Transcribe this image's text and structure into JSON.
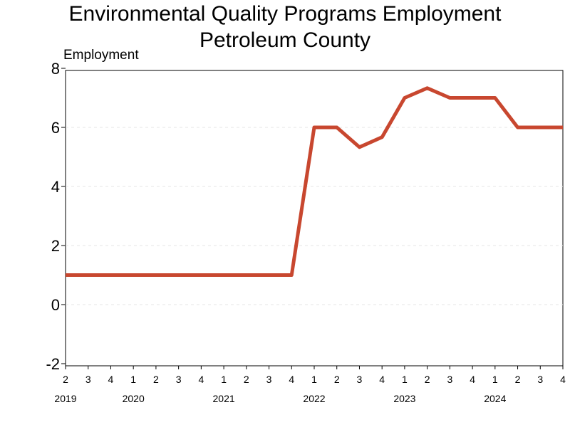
{
  "chart_data": {
    "type": "line",
    "title": "Environmental Quality Programs Employment",
    "subtitle": "Petroleum County",
    "ylabel": "Employment",
    "xlabel": "",
    "ylim": [
      -2,
      8
    ],
    "yticks": [
      "-2",
      "0",
      "2",
      "4",
      "6",
      "8"
    ],
    "grid": true,
    "line_color": "#c8472f",
    "x_quarters": [
      "2",
      "3",
      "4",
      "1",
      "2",
      "3",
      "4",
      "1",
      "2",
      "3",
      "4",
      "1",
      "2",
      "3",
      "4",
      "1",
      "2",
      "3",
      "4",
      "1",
      "2",
      "3",
      "4"
    ],
    "year_labels": [
      {
        "label": "2019",
        "quarter_index": 0
      },
      {
        "label": "2020",
        "quarter_index": 3
      },
      {
        "label": "2021",
        "quarter_index": 7
      },
      {
        "label": "2022",
        "quarter_index": 11
      },
      {
        "label": "2023",
        "quarter_index": 15
      },
      {
        "label": "2024",
        "quarter_index": 19
      }
    ],
    "series": [
      {
        "x": [
          "2019Q2",
          "2019Q3",
          "2019Q4",
          "2020Q1",
          "2020Q2",
          "2020Q3",
          "2020Q4",
          "2021Q1",
          "2021Q2",
          "2021Q3",
          "2021Q4",
          "2022Q1",
          "2022Q2",
          "2022Q3",
          "2022Q4",
          "2023Q1",
          "2023Q2",
          "2023Q3",
          "2023Q4",
          "2024Q1",
          "2024Q2",
          "2024Q3",
          "2024Q4"
        ],
        "values": [
          1,
          1,
          1,
          1,
          1,
          1,
          1,
          1,
          1,
          1,
          1,
          6,
          6,
          5.33,
          5.67,
          7,
          7.33,
          7,
          7,
          7,
          6,
          6,
          6
        ]
      }
    ]
  }
}
